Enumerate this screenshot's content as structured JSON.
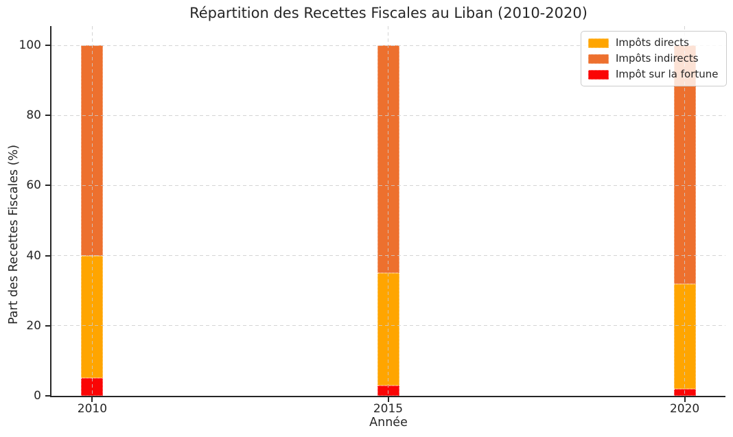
{
  "chart_data": {
    "type": "bar",
    "stacked": true,
    "title": "Répartition des Recettes Fiscales au Liban (2010-2020)",
    "xlabel": "Année",
    "ylabel": "Part des Recettes Fiscales (%)",
    "categories": [
      "2010",
      "2015",
      "2020"
    ],
    "series": [
      {
        "name": "Impôts directs",
        "color": "#FFA500",
        "values": [
          35,
          32,
          30
        ]
      },
      {
        "name": "Impôts indirects",
        "color": "#ED702E",
        "values": [
          60,
          65,
          68
        ]
      },
      {
        "name": "Impôt sur la fortune",
        "color": "#FA0505",
        "values": [
          5,
          3,
          2
        ]
      }
    ],
    "stack_order_bottom_to_top": [
      "Impôt sur la fortune",
      "Impôts directs",
      "Impôts indirects"
    ],
    "totals_per_category": [
      100,
      100,
      100
    ],
    "yticks": [
      0,
      20,
      40,
      60,
      80,
      100
    ],
    "ylim": [
      0,
      105.5
    ],
    "grid": {
      "visible": true,
      "style": "dashed"
    },
    "legend": {
      "position": "upper-right"
    }
  }
}
